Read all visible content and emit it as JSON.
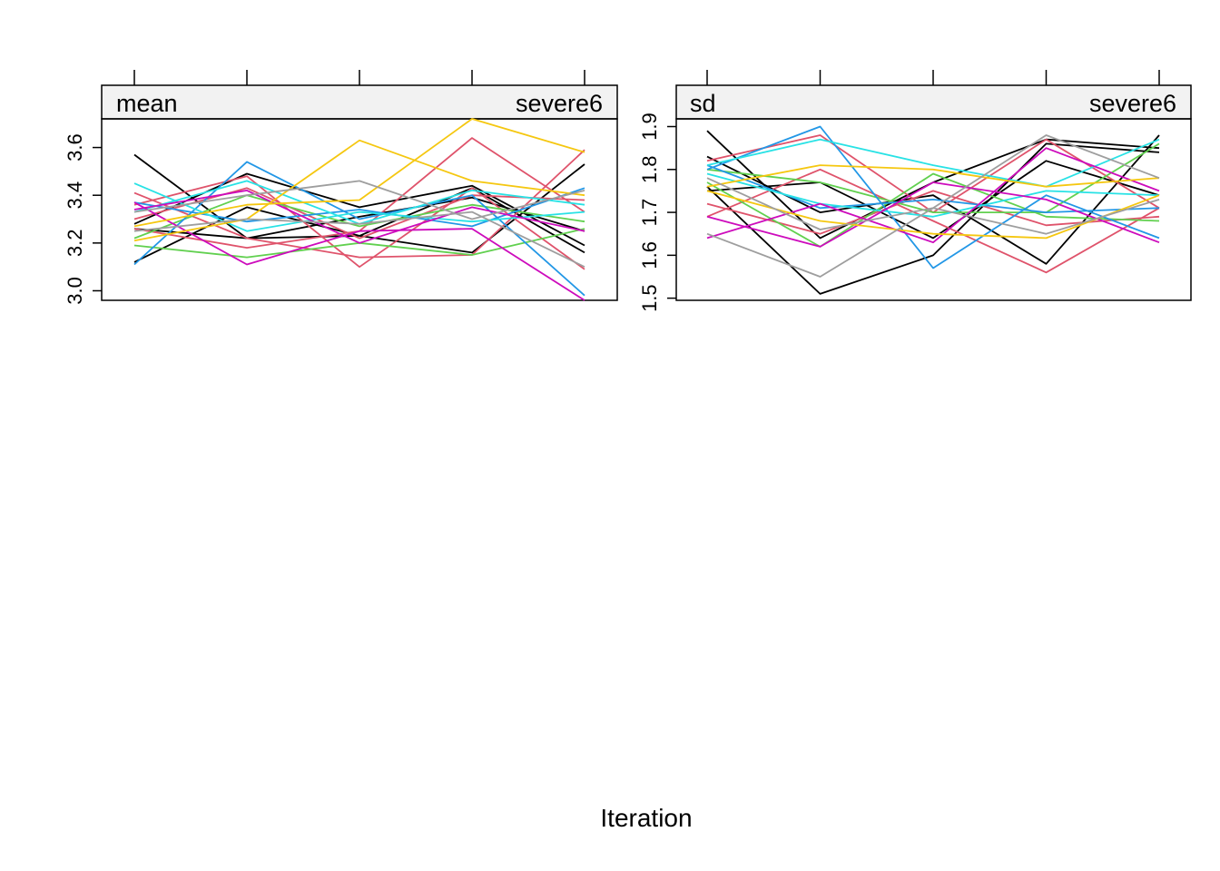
{
  "xlabel": "Iteration",
  "chart_data": [
    {
      "type": "line",
      "stat": "mean",
      "variable": "severe6",
      "x": [
        1,
        2,
        3,
        4,
        5
      ],
      "ylim": [
        2.96,
        3.72
      ],
      "yticks": [
        "3.0",
        "3.2",
        "3.4",
        "3.6"
      ],
      "ytick_values": [
        3.0,
        3.2,
        3.4,
        3.6
      ],
      "series": [
        {
          "color": "#000000",
          "values": [
            3.57,
            3.22,
            3.23,
            3.43,
            3.16
          ]
        },
        {
          "color": "#000000",
          "values": [
            3.12,
            3.35,
            3.23,
            3.16,
            3.53
          ]
        },
        {
          "color": "#000000",
          "values": [
            3.28,
            3.49,
            3.35,
            3.44,
            3.19
          ]
        },
        {
          "color": "#000000",
          "values": [
            3.26,
            3.22,
            3.31,
            3.39,
            3.25
          ]
        },
        {
          "color": "#DF536B",
          "values": [
            3.41,
            3.22,
            3.14,
            3.15,
            3.59
          ]
        },
        {
          "color": "#DF536B",
          "values": [
            3.26,
            3.18,
            3.25,
            3.64,
            3.33
          ]
        },
        {
          "color": "#DF536B",
          "values": [
            3.36,
            3.48,
            3.1,
            3.43,
            3.09
          ]
        },
        {
          "color": "#DF536B",
          "values": [
            3.3,
            3.43,
            3.22,
            3.4,
            3.38
          ]
        },
        {
          "color": "#61D04F",
          "values": [
            3.19,
            3.14,
            3.2,
            3.15,
            3.26
          ]
        },
        {
          "color": "#61D04F",
          "values": [
            3.22,
            3.4,
            3.27,
            3.36,
            3.29
          ]
        },
        {
          "color": "#2297E6",
          "values": [
            3.11,
            3.54,
            3.3,
            3.4,
            2.98
          ]
        },
        {
          "color": "#2297E6",
          "values": [
            3.37,
            3.29,
            3.34,
            3.27,
            3.43
          ]
        },
        {
          "color": "#28E2E5",
          "values": [
            3.45,
            3.25,
            3.33,
            3.29,
            3.33
          ]
        },
        {
          "color": "#28E2E5",
          "values": [
            3.33,
            3.46,
            3.28,
            3.42,
            3.36
          ]
        },
        {
          "color": "#CD0BBC",
          "values": [
            3.37,
            3.11,
            3.25,
            3.26,
            2.96
          ]
        },
        {
          "color": "#CD0BBC",
          "values": [
            3.34,
            3.42,
            3.2,
            3.35,
            3.25
          ]
        },
        {
          "color": "#F5C710",
          "values": [
            3.21,
            3.3,
            3.63,
            3.46,
            3.4
          ]
        },
        {
          "color": "#F5C710",
          "values": [
            3.27,
            3.36,
            3.38,
            3.72,
            3.58
          ]
        },
        {
          "color": "#9E9E9E",
          "values": [
            3.33,
            3.4,
            3.46,
            3.3,
            3.42
          ]
        },
        {
          "color": "#9E9E9E",
          "values": [
            3.25,
            3.3,
            3.28,
            3.33,
            3.1
          ]
        }
      ]
    },
    {
      "type": "line",
      "stat": "sd",
      "variable": "severe6",
      "x": [
        1,
        2,
        3,
        4,
        5
      ],
      "ylim": [
        1.495,
        1.918
      ],
      "yticks": [
        "1.5",
        "1.6",
        "1.7",
        "1.8",
        "1.9"
      ],
      "ytick_values": [
        1.5,
        1.6,
        1.7,
        1.8,
        1.9
      ],
      "series": [
        {
          "color": "#000000",
          "values": [
            1.89,
            1.64,
            1.77,
            1.87,
            1.85
          ]
        },
        {
          "color": "#000000",
          "values": [
            1.76,
            1.51,
            1.6,
            1.86,
            1.84
          ]
        },
        {
          "color": "#000000",
          "values": [
            1.83,
            1.7,
            1.74,
            1.58,
            1.88
          ]
        },
        {
          "color": "#000000",
          "values": [
            1.75,
            1.77,
            1.64,
            1.82,
            1.74
          ]
        },
        {
          "color": "#DF536B",
          "values": [
            1.69,
            1.8,
            1.68,
            1.56,
            1.71
          ]
        },
        {
          "color": "#DF536B",
          "values": [
            1.82,
            1.88,
            1.7,
            1.87,
            1.71
          ]
        },
        {
          "color": "#DF536B",
          "values": [
            1.72,
            1.65,
            1.75,
            1.67,
            1.69
          ]
        },
        {
          "color": "#61D04F",
          "values": [
            1.8,
            1.77,
            1.7,
            1.7,
            1.86
          ]
        },
        {
          "color": "#61D04F",
          "values": [
            1.77,
            1.62,
            1.79,
            1.69,
            1.68
          ]
        },
        {
          "color": "#2297E6",
          "values": [
            1.8,
            1.9,
            1.57,
            1.74,
            1.64
          ]
        },
        {
          "color": "#2297E6",
          "values": [
            1.81,
            1.71,
            1.73,
            1.7,
            1.71
          ]
        },
        {
          "color": "#28E2E5",
          "values": [
            1.81,
            1.87,
            1.81,
            1.76,
            1.87
          ]
        },
        {
          "color": "#28E2E5",
          "values": [
            1.79,
            1.72,
            1.69,
            1.75,
            1.74
          ]
        },
        {
          "color": "#CD0BBC",
          "values": [
            1.69,
            1.62,
            1.77,
            1.73,
            1.63
          ]
        },
        {
          "color": "#CD0BBC",
          "values": [
            1.64,
            1.72,
            1.63,
            1.85,
            1.75
          ]
        },
        {
          "color": "#F5C710",
          "values": [
            1.76,
            1.81,
            1.8,
            1.76,
            1.78
          ]
        },
        {
          "color": "#F5C710",
          "values": [
            1.75,
            1.68,
            1.65,
            1.64,
            1.74
          ]
        },
        {
          "color": "#9E9E9E",
          "values": [
            1.65,
            1.55,
            1.71,
            1.65,
            1.73
          ]
        },
        {
          "color": "#9E9E9E",
          "values": [
            1.78,
            1.66,
            1.71,
            1.88,
            1.78
          ]
        }
      ]
    }
  ]
}
